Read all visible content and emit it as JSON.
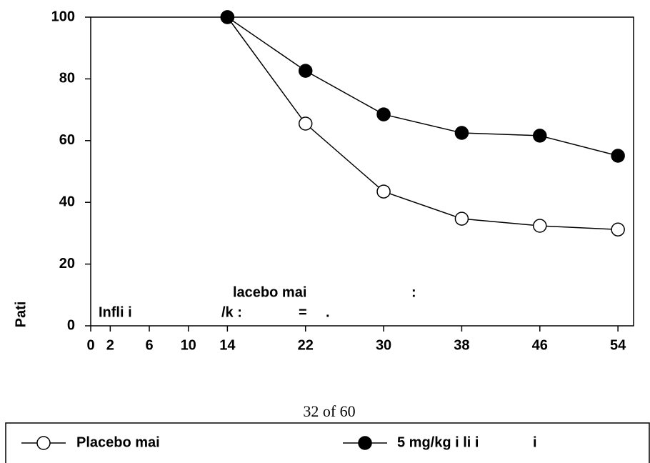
{
  "chart_data": {
    "type": "line",
    "y_label": "Pati",
    "x": [
      14,
      22,
      30,
      38,
      46,
      54
    ],
    "series": [
      {
        "name": "Placebo mai",
        "color": "#ffffff",
        "values": [
          100,
          65.5,
          43.5,
          34.7,
          32.4,
          31.2
        ]
      },
      {
        "name": "5 mg/kg i  li i",
        "color": "#000000",
        "values": [
          100,
          82.6,
          68.5,
          62.5,
          61.6,
          55.1
        ]
      }
    ],
    "xlim": [
      0,
      55.6
    ],
    "ylim": [
      0,
      100
    ],
    "xticks": [
      0,
      2,
      6,
      10,
      14,
      22,
      30,
      38,
      46,
      54
    ],
    "yticks": [
      0,
      20,
      40,
      60,
      80,
      100
    ],
    "annotations": [
      "lacebo mai",
      ":",
      "Infli i",
      "/k :",
      "=",
      "."
    ],
    "legend_note": "i",
    "page_label": "32 of 60"
  }
}
